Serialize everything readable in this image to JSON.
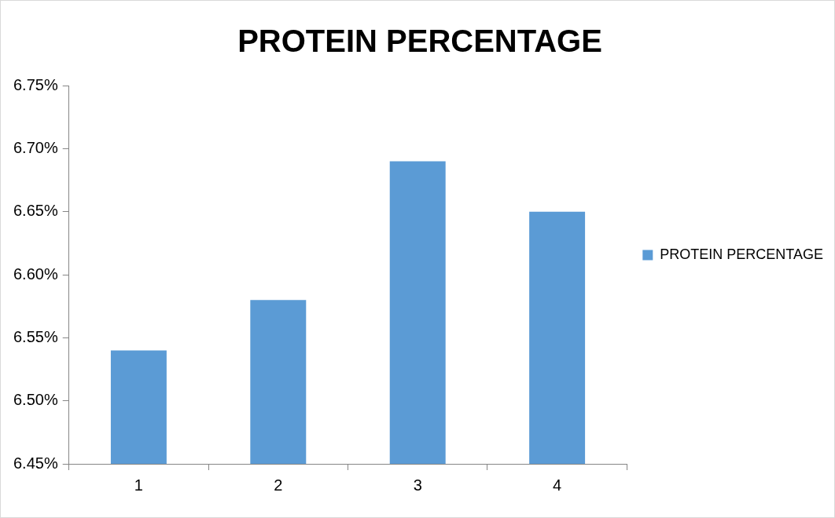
{
  "chart_data": {
    "type": "bar",
    "title": "PROTEIN PERCENTAGE",
    "categories": [
      "1",
      "2",
      "3",
      "4"
    ],
    "series": [
      {
        "name": "PROTEIN PERCENTAGE",
        "color": "#5b9bd5",
        "values": [
          6.54,
          6.58,
          6.69,
          6.65
        ]
      }
    ],
    "ylim": [
      6.45,
      6.75
    ],
    "yticks": [
      {
        "value": 6.45,
        "label": "6.45%"
      },
      {
        "value": 6.5,
        "label": "6.50%"
      },
      {
        "value": 6.55,
        "label": "6.55%"
      },
      {
        "value": 6.6,
        "label": "6.60%"
      },
      {
        "value": 6.65,
        "label": "6.65%"
      },
      {
        "value": 6.7,
        "label": "6.70%"
      },
      {
        "value": 6.75,
        "label": "6.75%"
      }
    ],
    "legend": "right"
  }
}
